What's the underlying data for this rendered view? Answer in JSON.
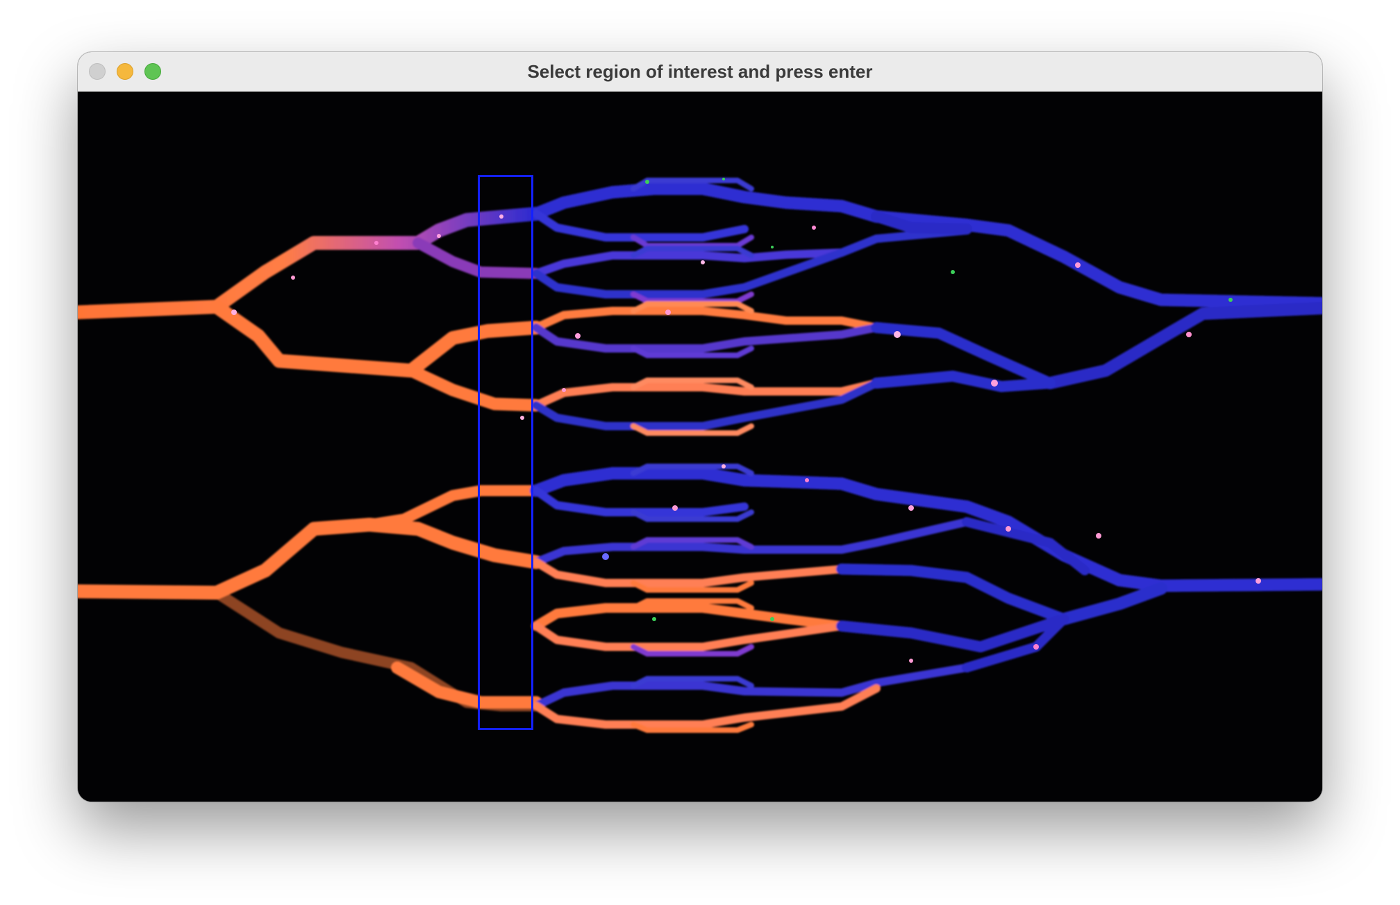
{
  "window": {
    "title": "Select region of interest and press enter"
  },
  "colors": {
    "roi_border": "#1320ff",
    "channel_orange": "#ff7a3c",
    "channel_blue": "#2b2bd6",
    "channel_pink": "#ff6ad0",
    "channel_green": "#3cd05a",
    "background": "#000000"
  },
  "icons": {
    "close": "close-button-icon",
    "minimize": "minimize-button-icon",
    "maximize": "maximize-button-icon"
  }
}
